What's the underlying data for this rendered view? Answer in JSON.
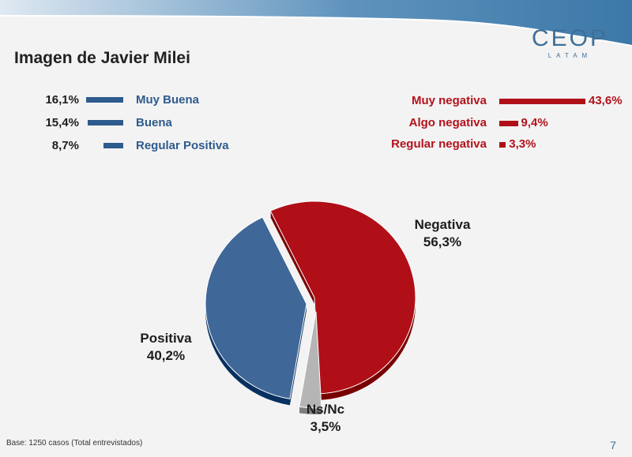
{
  "title": "Imagen de Javier Milei",
  "logo": {
    "main": "CEOP",
    "sub": "LATAM"
  },
  "positive_breakdown": [
    {
      "value": "16,1%",
      "num": 16.1,
      "label": "Muy Buena"
    },
    {
      "value": "15,4%",
      "num": 15.4,
      "label": "Buena"
    },
    {
      "value": "8,7%",
      "num": 8.7,
      "label": "Regular Positiva"
    }
  ],
  "negative_breakdown": [
    {
      "label": "Muy negativa",
      "value": "43,6%",
      "num": 43.6
    },
    {
      "label": "Algo negativa",
      "value": "9,4%",
      "num": 9.4
    },
    {
      "label": "Regular negativa",
      "value": "3,3%",
      "num": 3.3
    }
  ],
  "chart_data": {
    "type": "pie",
    "title": "Imagen de Javier Milei",
    "slices": [
      {
        "name": "Negativa",
        "value": 56.3,
        "label": "56,3%",
        "color": "#b00f17"
      },
      {
        "name": "Ns/Nc",
        "value": 3.5,
        "label": "3,5%",
        "color": "#b5b5b5"
      },
      {
        "name": "Positiva",
        "value": 40.2,
        "label": "40,2%",
        "color": "#3f6797"
      }
    ]
  },
  "footnote": "Base: 1250 casos (Total entrevistados)",
  "page_number": "7",
  "colors": {
    "positive": "#2e5b8d",
    "negative": "#b00f17",
    "nsnc": "#b5b5b5",
    "brand": "#3e6f98"
  }
}
